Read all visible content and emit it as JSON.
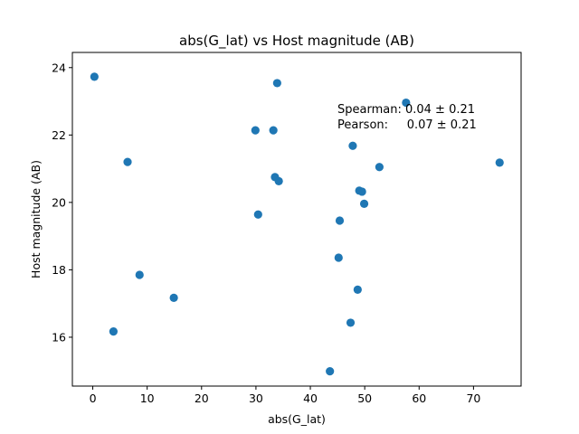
{
  "chart_data": {
    "type": "scatter",
    "title": "abs(G_lat) vs Host magnitude (AB)",
    "xlabel": "abs(G_lat)",
    "ylabel": "Host magnitude (AB)",
    "xlim": [
      -3.75,
      78.75
    ],
    "ylim": [
      14.55,
      24.45
    ],
    "xticks": [
      "0",
      "10",
      "20",
      "30",
      "40",
      "50",
      "60",
      "70"
    ],
    "yticks": [
      "16",
      "18",
      "20",
      "22",
      "24"
    ],
    "marker_color": "#1f77b4",
    "grid": false,
    "legend": "none",
    "points": [
      {
        "x": 0.3,
        "y": 23.73
      },
      {
        "x": 3.8,
        "y": 16.17
      },
      {
        "x": 6.4,
        "y": 21.2
      },
      {
        "x": 8.6,
        "y": 17.85
      },
      {
        "x": 14.9,
        "y": 17.17
      },
      {
        "x": 29.9,
        "y": 22.14
      },
      {
        "x": 30.4,
        "y": 19.64
      },
      {
        "x": 33.2,
        "y": 22.14
      },
      {
        "x": 33.5,
        "y": 20.75
      },
      {
        "x": 33.9,
        "y": 23.54
      },
      {
        "x": 34.2,
        "y": 20.63
      },
      {
        "x": 43.6,
        "y": 14.99
      },
      {
        "x": 45.2,
        "y": 18.36
      },
      {
        "x": 45.4,
        "y": 19.46
      },
      {
        "x": 47.4,
        "y": 16.43
      },
      {
        "x": 47.8,
        "y": 21.68
      },
      {
        "x": 48.7,
        "y": 17.41
      },
      {
        "x": 49.0,
        "y": 20.35
      },
      {
        "x": 49.5,
        "y": 20.32
      },
      {
        "x": 49.9,
        "y": 19.96
      },
      {
        "x": 52.7,
        "y": 21.05
      },
      {
        "x": 57.6,
        "y": 22.96
      },
      {
        "x": 74.8,
        "y": 21.18
      }
    ],
    "annotations": [
      {
        "text": "Spearman: 0.04 ± 0.21"
      },
      {
        "text": "Pearson:     0.07 ± 0.21"
      }
    ]
  }
}
